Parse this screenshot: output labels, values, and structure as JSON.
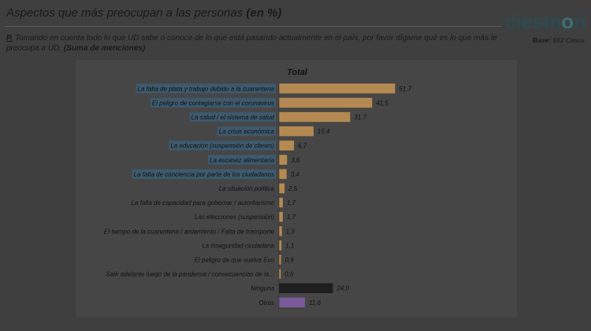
{
  "header": {
    "title_prefix": "Aspectos que más preocupan a las personas ",
    "title_bold": "(en %)",
    "logo_left": "ciesm",
    "logo_o": "o",
    "logo_right": "ri",
    "base_label": "Base:",
    "base_value": " 662 Casos"
  },
  "question": {
    "prefix": "P.",
    "text": " Tomando en cuenta todo lo que UD sabe o conoce de lo que está pasando actualmente en el país, por favor dígame qué es lo que más le preocupa a UD. ",
    "suffix": "(Suma de menciones)"
  },
  "colors": {
    "bar_default": "#b58a52",
    "bar_ninguna": "#1e1e1e",
    "bar_otros": "#7a5a9a",
    "highlight": "#3d5a6e"
  },
  "chart_data": {
    "type": "bar",
    "orientation": "horizontal",
    "title": "Total",
    "categories": [
      "La falta de plata y trabajo debido a la cuarentena",
      "El peligro de contagiarse con el  coronavirus",
      "La salud / el sistema de salud",
      "La crisis económica",
      "La educación (suspensión de clases)",
      "La escasez alimentaria",
      "La falta de conciencia por parte de los ciudadanos",
      "La situación política",
      "La falta de capacidad para gobernar / autoritarismo",
      "Las elecciones (suspensión)",
      "El tiempo de la cuarentena / aislamiento / Falta de transporte",
      "La inseguridad ciudadana",
      "El peligro de que vuelva Evo",
      "Salir adelante luego de la pandemia / consecuencias de la...",
      "Ninguna",
      "Otros"
    ],
    "values": [
      51.7,
      41.5,
      31.7,
      15.4,
      6.7,
      3.6,
      3.4,
      2.5,
      1.7,
      1.7,
      1.3,
      1.1,
      0.9,
      0.8,
      24.0,
      11.6
    ],
    "value_labels": [
      "51,7",
      "41,5",
      "31,7",
      "15,4",
      "6,7",
      "3,6",
      "3,4",
      "2,5",
      "1,7",
      "1,7",
      "1,3",
      "1,1",
      "0,9",
      "0,8",
      "24,0",
      "11,6"
    ],
    "highlighted_categories": [
      "La falta de plata y trabajo debido a la cuarentena",
      "El peligro de contagiarse con el  coronavirus",
      "La salud / el sistema de salud",
      "La crisis económica",
      "La educación (suspensión de clases)",
      "La escasez alimentaria",
      "La falta de conciencia por parte de los ciudadanos"
    ],
    "xlim": [
      0,
      60
    ],
    "grid": false,
    "legend": "none"
  }
}
